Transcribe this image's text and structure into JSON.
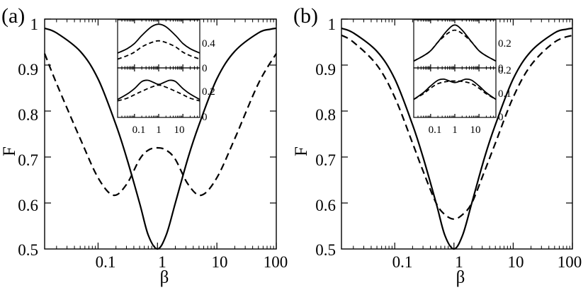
{
  "figure": {
    "panels": [
      {
        "tag": "(a)",
        "ylabel": "F",
        "xlabel": "β",
        "xticks": [
          "0.1",
          "1",
          "10",
          "100"
        ],
        "yticks": [
          "0.5",
          "0.6",
          "0.7",
          "0.8",
          "0.9",
          "1"
        ],
        "insets": [
          {
            "tag": "i",
            "yticks": [
              "0",
              "0.4"
            ]
          },
          {
            "tag": "s",
            "yticks": [
              "0",
              "0.2"
            ],
            "xticks": [
              "0.1",
              "1",
              "10"
            ]
          }
        ]
      },
      {
        "tag": "(b)",
        "ylabel": "F",
        "xlabel": "β",
        "xticks": [
          "0.1",
          "1",
          "10",
          "100"
        ],
        "yticks": [
          "0.5",
          "0.6",
          "0.7",
          "0.8",
          "0.9",
          "1"
        ],
        "insets": [
          {
            "tag": "i",
            "yticks": [
              "0",
              "0.2"
            ]
          },
          {
            "tag": "s",
            "yticks": [
              "0",
              "0.1",
              "0.2"
            ],
            "xticks": [
              "0.1",
              "1",
              "10"
            ]
          }
        ]
      }
    ]
  },
  "chart_data": [
    {
      "type": "line",
      "panel": "(a)",
      "xscale": "log",
      "xlim": [
        0.0126,
        100
      ],
      "ylim": [
        0.5,
        1
      ],
      "grid": false,
      "xlabel": "β",
      "ylabel": "F",
      "series": [
        {
          "style": "solid",
          "x": [
            0.0126,
            0.02,
            0.05,
            0.1,
            0.2,
            0.3,
            0.5,
            0.7,
            1,
            1.4,
            2,
            3.3,
            5,
            10,
            20,
            50,
            79.4,
            100
          ],
          "y": [
            0.98,
            0.97,
            0.93,
            0.87,
            0.77,
            0.7,
            0.6,
            0.53,
            0.5,
            0.53,
            0.6,
            0.7,
            0.77,
            0.87,
            0.93,
            0.97,
            0.978,
            0.98
          ]
        },
        {
          "style": "dashed",
          "x": [
            0.0126,
            0.02,
            0.05,
            0.1,
            0.18,
            0.3,
            0.5,
            0.7,
            1,
            1.4,
            2,
            3.3,
            5.5,
            10,
            20,
            50,
            100
          ],
          "y": [
            0.925,
            0.86,
            0.74,
            0.655,
            0.617,
            0.64,
            0.695,
            0.715,
            0.72,
            0.715,
            0.695,
            0.64,
            0.617,
            0.655,
            0.74,
            0.86,
            0.925
          ]
        }
      ]
    },
    {
      "type": "line",
      "panel": "(a) inset i",
      "xscale": "log",
      "xlim": [
        0.02,
        50
      ],
      "ylim": [
        0,
        0.55
      ],
      "grid": false,
      "series": [
        {
          "style": "solid",
          "x": [
            0.02,
            0.05,
            0.1,
            0.2,
            0.5,
            1,
            2,
            5,
            10,
            20,
            50
          ],
          "y": [
            0.17,
            0.22,
            0.28,
            0.37,
            0.47,
            0.5,
            0.47,
            0.37,
            0.28,
            0.22,
            0.17
          ]
        },
        {
          "style": "dashed",
          "x": [
            0.02,
            0.05,
            0.1,
            0.2,
            0.5,
            1,
            2,
            5,
            10,
            20,
            50
          ],
          "y": [
            0.1,
            0.14,
            0.18,
            0.24,
            0.29,
            0.31,
            0.29,
            0.24,
            0.18,
            0.14,
            0.1
          ]
        }
      ]
    },
    {
      "type": "line",
      "panel": "(a) inset s",
      "xscale": "log",
      "xlim": [
        0.02,
        50
      ],
      "ylim": [
        0,
        0.36
      ],
      "grid": false,
      "series": [
        {
          "style": "solid",
          "x": [
            0.02,
            0.05,
            0.1,
            0.2,
            0.35,
            0.6,
            1,
            1.7,
            2.9,
            5,
            10,
            20,
            50
          ],
          "y": [
            0.13,
            0.17,
            0.21,
            0.26,
            0.27,
            0.255,
            0.24,
            0.255,
            0.27,
            0.26,
            0.21,
            0.17,
            0.13
          ]
        },
        {
          "style": "dashed",
          "x": [
            0.02,
            0.05,
            0.1,
            0.2,
            0.5,
            1,
            2,
            5,
            10,
            20,
            50
          ],
          "y": [
            0.12,
            0.14,
            0.165,
            0.19,
            0.22,
            0.235,
            0.22,
            0.19,
            0.165,
            0.14,
            0.12
          ]
        }
      ]
    },
    {
      "type": "line",
      "panel": "(b)",
      "xscale": "log",
      "xlim": [
        0.0126,
        100
      ],
      "ylim": [
        0.5,
        1
      ],
      "grid": false,
      "xlabel": "β",
      "ylabel": "F",
      "series": [
        {
          "style": "solid",
          "x": [
            0.0126,
            0.02,
            0.05,
            0.1,
            0.2,
            0.3,
            0.5,
            0.7,
            1,
            1.4,
            2,
            3.3,
            5,
            10,
            20,
            50,
            79.4,
            100
          ],
          "y": [
            0.98,
            0.97,
            0.93,
            0.87,
            0.77,
            0.7,
            0.6,
            0.53,
            0.5,
            0.53,
            0.6,
            0.7,
            0.77,
            0.87,
            0.93,
            0.97,
            0.978,
            0.98
          ]
        },
        {
          "style": "dashed",
          "x": [
            0.0126,
            0.02,
            0.05,
            0.1,
            0.2,
            0.3,
            0.5,
            0.7,
            1,
            1.4,
            2,
            3.3,
            5,
            10,
            20,
            50,
            100
          ],
          "y": [
            0.965,
            0.95,
            0.9,
            0.83,
            0.73,
            0.67,
            0.6,
            0.575,
            0.565,
            0.575,
            0.6,
            0.67,
            0.73,
            0.83,
            0.9,
            0.95,
            0.965
          ]
        }
      ]
    },
    {
      "type": "line",
      "panel": "(b) inset i",
      "xscale": "log",
      "xlim": [
        0.02,
        50
      ],
      "ylim": [
        0,
        0.28
      ],
      "grid": false,
      "series": [
        {
          "style": "solid",
          "x": [
            0.02,
            0.05,
            0.1,
            0.2,
            0.5,
            1,
            2,
            5,
            10,
            20,
            50
          ],
          "y": [
            0.04,
            0.07,
            0.1,
            0.15,
            0.22,
            0.25,
            0.22,
            0.15,
            0.1,
            0.07,
            0.04
          ]
        },
        {
          "style": "dashed",
          "x": [
            0.02,
            0.05,
            0.1,
            0.2,
            0.5,
            1,
            2,
            5,
            10,
            20,
            50
          ],
          "y": [
            0.04,
            0.07,
            0.1,
            0.15,
            0.2,
            0.22,
            0.2,
            0.15,
            0.1,
            0.07,
            0.04
          ]
        }
      ]
    },
    {
      "type": "line",
      "panel": "(b) inset s",
      "xscale": "log",
      "xlim": [
        0.02,
        50
      ],
      "ylim": [
        0,
        0.22
      ],
      "grid": false,
      "series": [
        {
          "style": "solid",
          "x": [
            0.02,
            0.05,
            0.1,
            0.2,
            0.35,
            0.6,
            1,
            1.7,
            2.9,
            5,
            10,
            20,
            50
          ],
          "y": [
            0.08,
            0.11,
            0.14,
            0.165,
            0.17,
            0.162,
            0.155,
            0.162,
            0.17,
            0.165,
            0.14,
            0.11,
            0.08
          ]
        },
        {
          "style": "dashed",
          "x": [
            0.02,
            0.05,
            0.1,
            0.2,
            0.5,
            1,
            2,
            5,
            10,
            20,
            50
          ],
          "y": [
            0.08,
            0.105,
            0.13,
            0.15,
            0.16,
            0.162,
            0.16,
            0.15,
            0.13,
            0.105,
            0.08
          ]
        }
      ]
    }
  ]
}
